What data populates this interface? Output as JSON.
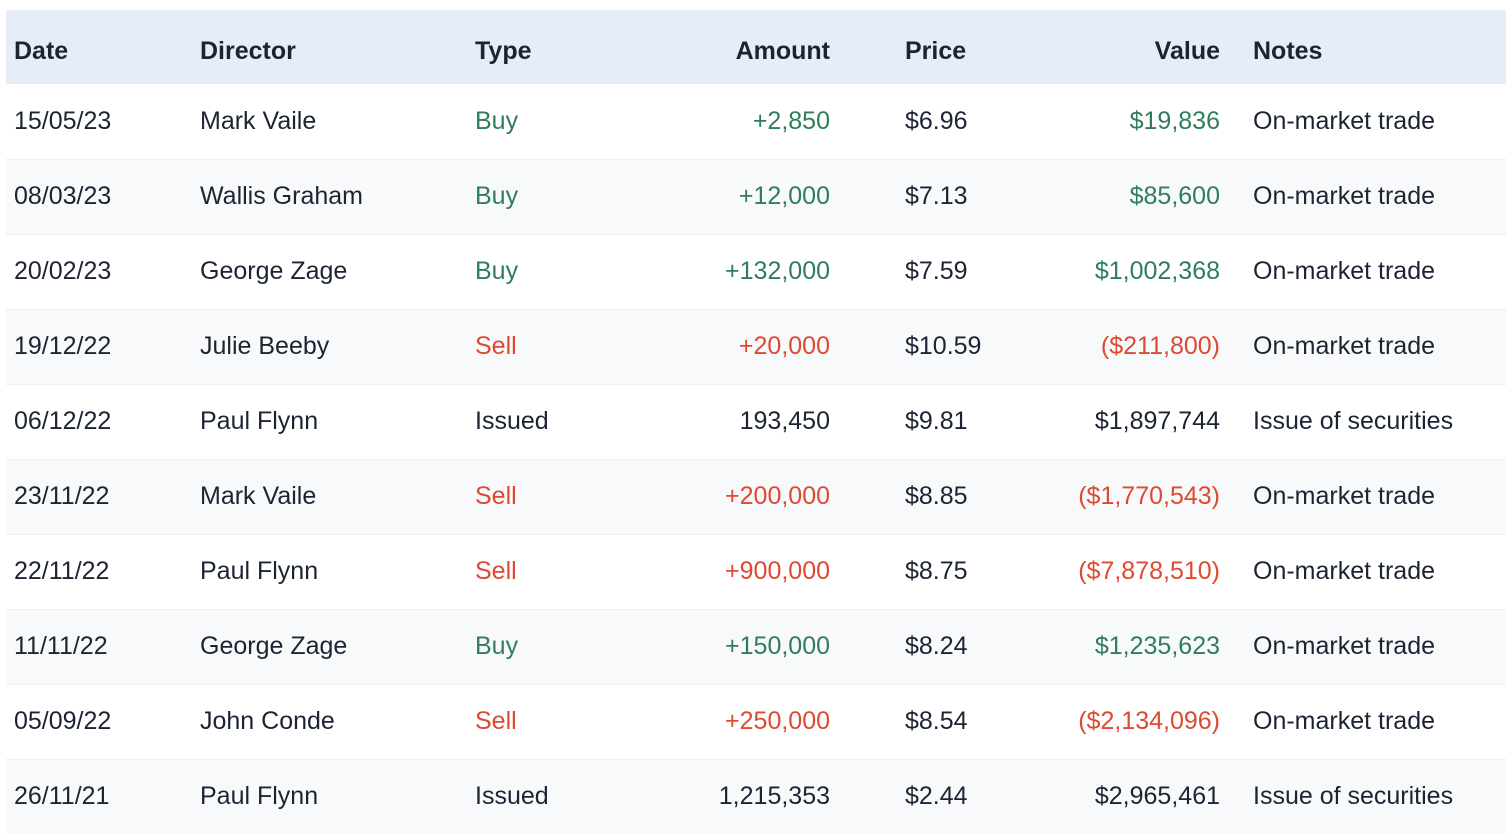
{
  "table": {
    "columns": [
      {
        "key": "date",
        "label": "Date",
        "align": "left"
      },
      {
        "key": "director",
        "label": "Director",
        "align": "left"
      },
      {
        "key": "type",
        "label": "Type",
        "align": "left"
      },
      {
        "key": "amount",
        "label": "Amount",
        "align": "right"
      },
      {
        "key": "price",
        "label": "Price",
        "align": "left"
      },
      {
        "key": "value",
        "label": "Value",
        "align": "right"
      },
      {
        "key": "notes",
        "label": "Notes",
        "align": "left"
      }
    ],
    "rows": [
      {
        "date": "15/05/23",
        "director": "Mark Vaile",
        "type": "Buy",
        "amount": "+2,850",
        "price": "$6.96",
        "value": "$19,836",
        "notes": "On-market trade",
        "direction": "buy"
      },
      {
        "date": "08/03/23",
        "director": "Wallis Graham",
        "type": "Buy",
        "amount": "+12,000",
        "price": "$7.13",
        "value": "$85,600",
        "notes": "On-market trade",
        "direction": "buy"
      },
      {
        "date": "20/02/23",
        "director": "George Zage",
        "type": "Buy",
        "amount": "+132,000",
        "price": "$7.59",
        "value": "$1,002,368",
        "notes": "On-market trade",
        "direction": "buy"
      },
      {
        "date": "19/12/22",
        "director": "Julie Beeby",
        "type": "Sell",
        "amount": "+20,000",
        "price": "$10.59",
        "value": "($211,800)",
        "notes": "On-market trade",
        "direction": "sell"
      },
      {
        "date": "06/12/22",
        "director": "Paul Flynn",
        "type": "Issued",
        "amount": "193,450",
        "price": "$9.81",
        "value": "$1,897,744",
        "notes": "Issue of securities",
        "direction": "neutral"
      },
      {
        "date": "23/11/22",
        "director": "Mark Vaile",
        "type": "Sell",
        "amount": "+200,000",
        "price": "$8.85",
        "value": "($1,770,543)",
        "notes": "On-market trade",
        "direction": "sell"
      },
      {
        "date": "22/11/22",
        "director": "Paul Flynn",
        "type": "Sell",
        "amount": "+900,000",
        "price": "$8.75",
        "value": "($7,878,510)",
        "notes": "On-market trade",
        "direction": "sell"
      },
      {
        "date": "11/11/22",
        "director": "George Zage",
        "type": "Buy",
        "amount": "+150,000",
        "price": "$8.24",
        "value": "$1,235,623",
        "notes": "On-market trade",
        "direction": "buy"
      },
      {
        "date": "05/09/22",
        "director": "John Conde",
        "type": "Sell",
        "amount": "+250,000",
        "price": "$8.54",
        "value": "($2,134,096)",
        "notes": "On-market trade",
        "direction": "sell"
      },
      {
        "date": "26/11/21",
        "director": "Paul Flynn",
        "type": "Issued",
        "amount": "1,215,353",
        "price": "$2.44",
        "value": "$2,965,461",
        "notes": "Issue of securities",
        "direction": "neutral"
      }
    ],
    "colors": {
      "buy": "#2F7D5A",
      "sell": "#DD4A30",
      "neutral": "#1C2433",
      "header_bg": "#E7EDF6",
      "row_alt_bg": "#F8F9FB",
      "row_border": "#EDF0F5",
      "page_bg": "#FFFFFF"
    }
  }
}
